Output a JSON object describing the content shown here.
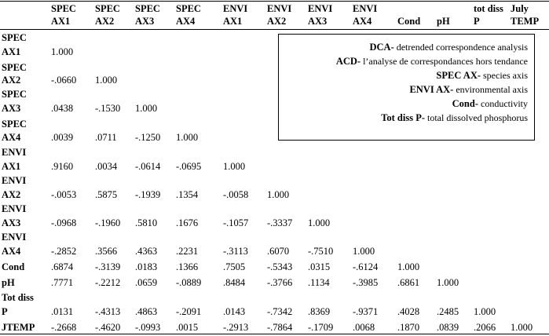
{
  "columns": [
    {
      "line1": "SPEC",
      "line2": "AX1"
    },
    {
      "line1": "SPEC",
      "line2": "AX2"
    },
    {
      "line1": "SPEC",
      "line2": "AX3"
    },
    {
      "line1": "SPEC",
      "line2": "AX4"
    },
    {
      "line1": "ENVI",
      "line2": "AX1"
    },
    {
      "line1": "ENVI",
      "line2": "AX2"
    },
    {
      "line1": "ENVI",
      "line2": "AX3"
    },
    {
      "line1": "ENVI",
      "line2": "AX4"
    },
    {
      "line1": "",
      "line2": "Cond"
    },
    {
      "line1": "",
      "line2": "pH"
    },
    {
      "line1": "tot diss",
      "line2": "P"
    },
    {
      "line1": "July",
      "line2": "TEMP"
    }
  ],
  "rows": [
    {
      "label1": "SPEC",
      "label2": "AX1",
      "values": [
        "1.000"
      ]
    },
    {
      "label1": "SPEC",
      "label2": "AX2",
      "values": [
        "-.0660",
        "1.000"
      ]
    },
    {
      "label1": "SPEC",
      "label2": "AX3",
      "values": [
        ".0438",
        "-.1530",
        "1.000"
      ]
    },
    {
      "label1": "SPEC",
      "label2": "AX4",
      "values": [
        ".0039",
        ".0711",
        "-.1250",
        "1.000"
      ]
    },
    {
      "label1": "ENVI",
      "label2": "AX1",
      "values": [
        ".9160",
        ".0034",
        "-.0614",
        "-.0695",
        "1.000"
      ]
    },
    {
      "label1": "ENVI",
      "label2": "AX2",
      "values": [
        "-.0053",
        ".5875",
        "-.1939",
        ".1354",
        "-.0058",
        "1.000"
      ]
    },
    {
      "label1": "ENVI",
      "label2": "AX3",
      "values": [
        "-.0968",
        "-.1960",
        ".5810",
        ".1676",
        "-.1057",
        "-.3337",
        "1.000"
      ]
    },
    {
      "label1": "ENVI",
      "label2": "AX4",
      "values": [
        "-.2852",
        ".3566",
        ".4363",
        ".2231",
        "-.3113",
        ".6070",
        "-.7510",
        "1.000"
      ]
    },
    {
      "label1": "",
      "label2": "Cond",
      "values": [
        ".6874",
        "-.3139",
        ".0183",
        ".1366",
        ".7505",
        "-.5343",
        ".0315",
        "-.6124",
        "1.000"
      ]
    },
    {
      "label1": "",
      "label2": "pH",
      "values": [
        ".7771",
        "-.2212",
        ".0659",
        "-.0889",
        ".8484",
        "-.3766",
        ".1134",
        "-.3985",
        ".6861",
        "1.000"
      ]
    },
    {
      "label1": "Tot diss",
      "label2": "P",
      "values": [
        ".0131",
        "-.4313",
        ".4863",
        "-.2091",
        ".0143",
        "-.7342",
        ".8369",
        "-.9371",
        ".4028",
        ".2485",
        "1.000"
      ]
    },
    {
      "label1": "",
      "label2": "JTEMP",
      "values": [
        "-.2668",
        "-.4620",
        "-.0993",
        ".0015",
        "-.2913",
        "-.7864",
        "-.1709",
        ".0068",
        ".1870",
        ".0839",
        ".2066",
        "1.000"
      ]
    }
  ],
  "legend": [
    {
      "term": "DCA-",
      "text": " detrended correspondence analysis"
    },
    {
      "term": "ACD-",
      "text": " l’analyse de correspondances hors tendance"
    },
    {
      "term": "SPEC AX-",
      "text": " species axis"
    },
    {
      "term": "ENVI AX-",
      "text": " environmental axis"
    },
    {
      "term": "Cond-",
      "text": " conductivity"
    },
    {
      "term": "Tot diss P-",
      "text": " total dissolved phosphorus"
    }
  ]
}
